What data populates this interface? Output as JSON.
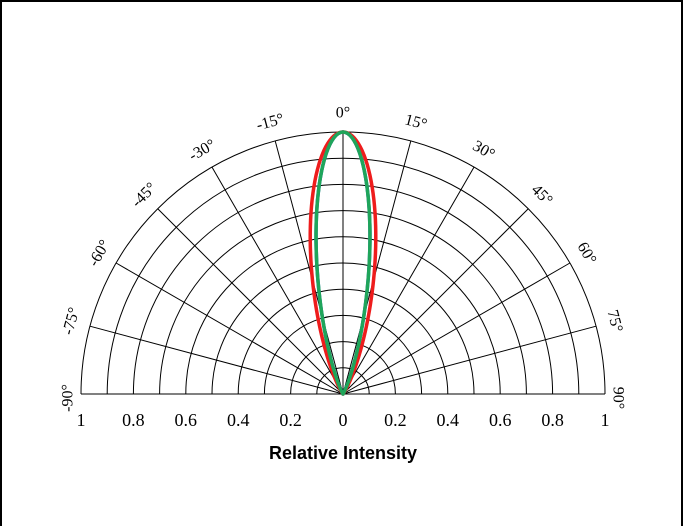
{
  "chart_data": {
    "type": "polar-radiation-pattern",
    "xlabel": "Relative Intensity",
    "radial_ticks": [
      "1",
      "0.8",
      "0.6",
      "0.4",
      "0.2",
      "0",
      "0.2",
      "0.4",
      "0.6",
      "0.8",
      "1"
    ],
    "angle_labels": [
      "-90°",
      "-75°",
      "-60°",
      "-45°",
      "-30°",
      "-15°",
      "0°",
      "15°",
      "30°",
      "45°",
      "60°",
      "75°",
      "90°"
    ],
    "angles": [
      -90,
      -75,
      -60,
      -45,
      -30,
      -15,
      0,
      15,
      30,
      45,
      60,
      75,
      90
    ],
    "radial_range": [
      0,
      1
    ],
    "grid": true,
    "series": [
      {
        "color": "#1f5fbf",
        "half_angle_deg": 11.5
      },
      {
        "color": "#ee1c1c",
        "half_angle_deg": 14
      },
      {
        "color": "#1fa55a",
        "half_angle_deg": 11.5
      }
    ]
  }
}
